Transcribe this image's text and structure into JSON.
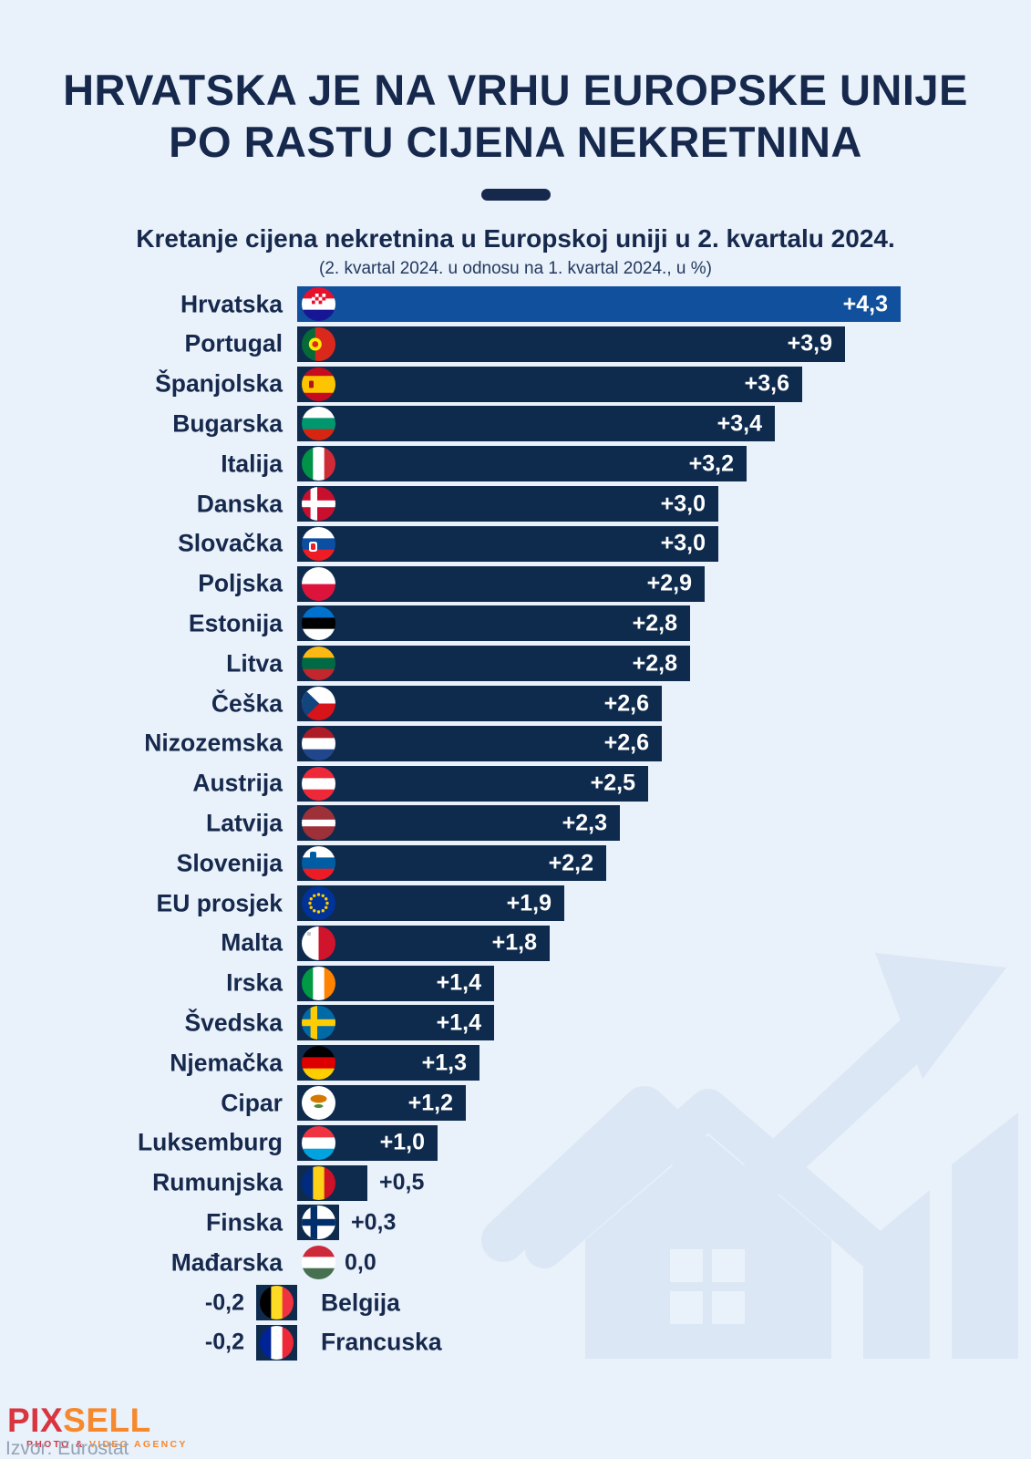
{
  "colors": {
    "bg": "#e9f1fb",
    "bar": "#0e2b4e",
    "accent_bar": "#10509c",
    "title": "#16294d",
    "note": "#23395e",
    "gray": "#93a2b5",
    "pix_red": "#d8353f",
    "sell_orange": "#f6892d",
    "watermark": "#dce7f5",
    "value_inside": "#ffffff"
  },
  "header": {
    "title_line1": "HRVATSKA JE NA VRHU EUROPSKE UNIJE",
    "title_line2": "PO RASTU CIJENA NEKRETNINA",
    "subtitle": "Kretanje cijena nekretnina u Europskoj uniji u 2. kvartalu 2024.",
    "note": "(2. kvartal 2024. u odnosu na 1. kvartal 2024., u %)"
  },
  "chart": {
    "rows": [
      {
        "id": "hrvatska",
        "label": "Hrvatska",
        "value": 4.3,
        "value_label": "+4,3",
        "accent": true,
        "flag": {
          "type": "h",
          "stripes": [
            {
              "c": "#e8112d",
              "w": 0.334
            },
            {
              "c": "#ffffff",
              "w": 0.333
            },
            {
              "c": "#171796",
              "w": 0.333
            }
          ],
          "emblems": [
            {
              "t": "checker",
              "x": 11,
              "y": 7,
              "s": 3.8,
              "c": "#e8112d"
            }
          ]
        }
      },
      {
        "id": "portugal",
        "label": "Portugal",
        "value": 3.9,
        "value_label": "+3,9",
        "flag": {
          "type": "v",
          "stripes": [
            {
              "c": "#046a38",
              "w": 0.4
            },
            {
              "c": "#da291c",
              "w": 0.6
            }
          ],
          "emblems": [
            {
              "t": "circle",
              "x": 14.8,
              "y": 18.5,
              "r": 7,
              "c": "#ffe900"
            },
            {
              "t": "circle",
              "x": 14.8,
              "y": 18.5,
              "r": 3.4,
              "c": "#da291c"
            }
          ]
        }
      },
      {
        "id": "spanjolska",
        "label": "Španjolska",
        "value": 3.6,
        "value_label": "+3,6",
        "flag": {
          "type": "h",
          "stripes": [
            {
              "c": "#c60b1e",
              "w": 0.25
            },
            {
              "c": "#ffc400",
              "w": 0.5
            },
            {
              "c": "#c60b1e",
              "w": 0.25
            }
          ],
          "emblems": [
            {
              "t": "rect",
              "x": 8,
              "y": 14.5,
              "w": 5,
              "h": 8,
              "rx": 1.5,
              "c": "#ad1519"
            }
          ]
        }
      },
      {
        "id": "bugarska",
        "label": "Bugarska",
        "value": 3.4,
        "value_label": "+3,4",
        "flag": {
          "type": "h",
          "stripes": [
            {
              "c": "#ffffff",
              "w": 0.334
            },
            {
              "c": "#00966e",
              "w": 0.333
            },
            {
              "c": "#d62612",
              "w": 0.333
            }
          ]
        }
      },
      {
        "id": "italija",
        "label": "Italija",
        "value": 3.2,
        "value_label": "+3,2",
        "flag": {
          "type": "v",
          "stripes": [
            {
              "c": "#009246",
              "w": 0.334
            },
            {
              "c": "#ffffff",
              "w": 0.333
            },
            {
              "c": "#ce2b37",
              "w": 0.333
            }
          ]
        }
      },
      {
        "id": "danska",
        "label": "Danska",
        "value": 3.0,
        "value_label": "+3,0",
        "flag": {
          "type": "nordic",
          "bg": "#c8102e",
          "cross": "#ffffff"
        }
      },
      {
        "id": "slovacka",
        "label": "Slovačka",
        "value": 3.0,
        "value_label": "+3,0",
        "flag": {
          "type": "h",
          "stripes": [
            {
              "c": "#ffffff",
              "w": 0.334
            },
            {
              "c": "#0b4ea2",
              "w": 0.333
            },
            {
              "c": "#ee1c25",
              "w": 0.333
            }
          ],
          "emblems": [
            {
              "t": "rect",
              "x": 8,
              "y": 16,
              "w": 9,
              "h": 11,
              "rx": 2.5,
              "c": "#ffffff"
            },
            {
              "t": "rect",
              "x": 10,
              "y": 18,
              "w": 5,
              "h": 7,
              "rx": 1.5,
              "c": "#ee1c25"
            }
          ]
        }
      },
      {
        "id": "poljska",
        "label": "Poljska",
        "value": 2.9,
        "value_label": "+2,9",
        "flag": {
          "type": "h",
          "stripes": [
            {
              "c": "#ffffff",
              "w": 0.5
            },
            {
              "c": "#dc143c",
              "w": 0.5
            }
          ]
        }
      },
      {
        "id": "estonija",
        "label": "Estonija",
        "value": 2.8,
        "value_label": "+2,8",
        "flag": {
          "type": "h",
          "stripes": [
            {
              "c": "#0072ce",
              "w": 0.334
            },
            {
              "c": "#000000",
              "w": 0.333
            },
            {
              "c": "#ffffff",
              "w": 0.333
            }
          ]
        }
      },
      {
        "id": "litva",
        "label": "Litva",
        "value": 2.8,
        "value_label": "+2,8",
        "flag": {
          "type": "h",
          "stripes": [
            {
              "c": "#fdb913",
              "w": 0.334
            },
            {
              "c": "#006a44",
              "w": 0.333
            },
            {
              "c": "#c1272d",
              "w": 0.333
            }
          ]
        }
      },
      {
        "id": "ceska",
        "label": "Češka",
        "value": 2.6,
        "value_label": "+2,6",
        "flag": {
          "type": "h",
          "stripes": [
            {
              "c": "#ffffff",
              "w": 0.5
            },
            {
              "c": "#d7141a",
              "w": 0.5
            }
          ],
          "emblems": [
            {
              "t": "tri",
              "c": "#11457e"
            }
          ]
        }
      },
      {
        "id": "nizozemska",
        "label": "Nizozemska",
        "value": 2.6,
        "value_label": "+2,6",
        "flag": {
          "type": "h",
          "stripes": [
            {
              "c": "#ae1c28",
              "w": 0.334
            },
            {
              "c": "#ffffff",
              "w": 0.333
            },
            {
              "c": "#21468b",
              "w": 0.333
            }
          ]
        }
      },
      {
        "id": "austrija",
        "label": "Austrija",
        "value": 2.5,
        "value_label": "+2,5",
        "flag": {
          "type": "h",
          "stripes": [
            {
              "c": "#ed2939",
              "w": 0.334
            },
            {
              "c": "#ffffff",
              "w": 0.333
            },
            {
              "c": "#ed2939",
              "w": 0.333
            }
          ]
        }
      },
      {
        "id": "latvija",
        "label": "Latvija",
        "value": 2.3,
        "value_label": "+2,3",
        "flag": {
          "type": "h",
          "stripes": [
            {
              "c": "#9e3039",
              "w": 0.4
            },
            {
              "c": "#ffffff",
              "w": 0.2
            },
            {
              "c": "#9e3039",
              "w": 0.4
            }
          ]
        }
      },
      {
        "id": "slovenija",
        "label": "Slovenija",
        "value": 2.2,
        "value_label": "+2,2",
        "flag": {
          "type": "h",
          "stripes": [
            {
              "c": "#ffffff",
              "w": 0.334
            },
            {
              "c": "#005da4",
              "w": 0.333
            },
            {
              "c": "#ed1c24",
              "w": 0.333
            }
          ],
          "emblems": [
            {
              "t": "rect",
              "x": 9,
              "y": 6,
              "w": 7,
              "h": 9,
              "rx": 2,
              "c": "#005da4"
            }
          ]
        }
      },
      {
        "id": "eu-prosjek",
        "label": "EU prosjek",
        "value": 1.9,
        "value_label": "+1,9",
        "flag": {
          "type": "eu",
          "bg": "#003399",
          "star": "#ffcc00"
        }
      },
      {
        "id": "malta",
        "label": "Malta",
        "value": 1.8,
        "value_label": "+1,8",
        "flag": {
          "type": "v",
          "stripes": [
            {
              "c": "#ffffff",
              "w": 0.5
            },
            {
              "c": "#cf142b",
              "w": 0.5
            }
          ],
          "emblems": [
            {
              "t": "rect",
              "x": 6,
              "y": 6,
              "w": 4,
              "h": 4,
              "rx": 0.5,
              "c": "#c8c8c8"
            }
          ]
        }
      },
      {
        "id": "irska",
        "label": "Irska",
        "value": 1.4,
        "value_label": "+1,4",
        "flag": {
          "type": "v",
          "stripes": [
            {
              "c": "#009a44",
              "w": 0.334
            },
            {
              "c": "#ffffff",
              "w": 0.333
            },
            {
              "c": "#ff8200",
              "w": 0.333
            }
          ]
        }
      },
      {
        "id": "svedska",
        "label": "Švedska",
        "value": 1.4,
        "value_label": "+1,4",
        "flag": {
          "type": "nordic",
          "bg": "#006aa7",
          "cross": "#fecc02"
        }
      },
      {
        "id": "njemacka",
        "label": "Njemačka",
        "value": 1.3,
        "value_label": "+1,3",
        "flag": {
          "type": "h",
          "stripes": [
            {
              "c": "#000000",
              "w": 0.334
            },
            {
              "c": "#dd0000",
              "w": 0.333
            },
            {
              "c": "#ffce00",
              "w": 0.333
            }
          ]
        }
      },
      {
        "id": "cipar",
        "label": "Cipar",
        "value": 1.2,
        "value_label": "+1,2",
        "flag": {
          "type": "solid",
          "bg": "#ffffff",
          "emblems": [
            {
              "t": "ellipse",
              "x": 18.5,
              "y": 14,
              "rx": 9,
              "ry": 4.5,
              "c": "#d57800"
            },
            {
              "t": "ellipse",
              "x": 18.5,
              "y": 22,
              "rx": 5,
              "ry": 2,
              "c": "#4e8b31"
            }
          ]
        }
      },
      {
        "id": "luksemburg",
        "label": "Luksemburg",
        "value": 1.0,
        "value_label": "+1,0",
        "flag": {
          "type": "h",
          "stripes": [
            {
              "c": "#ef3340",
              "w": 0.334
            },
            {
              "c": "#ffffff",
              "w": 0.333
            },
            {
              "c": "#00a3e0",
              "w": 0.333
            }
          ]
        }
      },
      {
        "id": "rumunjska",
        "label": "Rumunjska",
        "value": 0.5,
        "value_label": "+0,5",
        "flag": {
          "type": "v",
          "stripes": [
            {
              "c": "#002b7f",
              "w": 0.334
            },
            {
              "c": "#fcd116",
              "w": 0.333
            },
            {
              "c": "#ce1126",
              "w": 0.333
            }
          ]
        }
      },
      {
        "id": "finska",
        "label": "Finska",
        "value": 0.3,
        "value_label": "+0,3",
        "flag": {
          "type": "nordic",
          "bg": "#ffffff",
          "cross": "#002f6c"
        }
      },
      {
        "id": "madarska",
        "label": "Mađarska",
        "value": 0.0,
        "value_label": "0,0",
        "flag": {
          "type": "h",
          "stripes": [
            {
              "c": "#ce2939",
              "w": 0.334
            },
            {
              "c": "#ffffff",
              "w": 0.333
            },
            {
              "c": "#477050",
              "w": 0.333
            }
          ]
        }
      },
      {
        "id": "belgija",
        "label": "Belgija",
        "value": -0.2,
        "value_label": "-0,2",
        "flag": {
          "type": "v",
          "stripes": [
            {
              "c": "#000000",
              "w": 0.334
            },
            {
              "c": "#fdda24",
              "w": 0.333
            },
            {
              "c": "#ef3340",
              "w": 0.333
            }
          ]
        }
      },
      {
        "id": "francuska",
        "label": "Francuska",
        "value": -0.2,
        "value_label": "-0,2",
        "flag": {
          "type": "v",
          "stripes": [
            {
              "c": "#002395",
              "w": 0.334
            },
            {
              "c": "#ffffff",
              "w": 0.333
            },
            {
              "c": "#ed2939",
              "w": 0.333
            }
          ]
        }
      }
    ]
  },
  "chart_data": {
    "type": "bar",
    "orientation": "horizontal",
    "title": "Kretanje cijena nekretnina u Europskoj uniji u 2. kvartalu 2024.",
    "subtitle": "(2. kvartal 2024. u odnosu na 1. kvartal 2024., u %)",
    "unit": "%",
    "categories": [
      "Hrvatska",
      "Portugal",
      "Španjolska",
      "Bugarska",
      "Italija",
      "Danska",
      "Slovačka",
      "Poljska",
      "Estonija",
      "Litva",
      "Češka",
      "Nizozemska",
      "Austrija",
      "Latvija",
      "Slovenija",
      "EU prosjek",
      "Malta",
      "Irska",
      "Švedska",
      "Njemačka",
      "Cipar",
      "Luksemburg",
      "Rumunjska",
      "Finska",
      "Mađarska",
      "Belgija",
      "Francuska"
    ],
    "values": [
      4.3,
      3.9,
      3.6,
      3.4,
      3.2,
      3.0,
      3.0,
      2.9,
      2.8,
      2.8,
      2.6,
      2.6,
      2.5,
      2.3,
      2.2,
      1.9,
      1.8,
      1.4,
      1.4,
      1.3,
      1.2,
      1.0,
      0.5,
      0.3,
      0.0,
      -0.2,
      -0.2
    ],
    "data_labels": [
      "+4,3",
      "+3,9",
      "+3,6",
      "+3,4",
      "+3,2",
      "+3,0",
      "+3,0",
      "+2,9",
      "+2,8",
      "+2,8",
      "+2,6",
      "+2,6",
      "+2,5",
      "+2,3",
      "+2,2",
      "+1,9",
      "+1,8",
      "+1,4",
      "+1,4",
      "+1,3",
      "+1,2",
      "+1,0",
      "+0,5",
      "+0,3",
      "0,0",
      "-0,2",
      "-0,2"
    ],
    "highlighted_category": "Hrvatska",
    "xlim": [
      -0.3,
      4.5
    ],
    "grid": false,
    "legend": false
  },
  "footer": {
    "logo_pix": "PIX",
    "logo_sell": "SELL",
    "tagline_left": "PHOTO &",
    "tagline_right": "VIDEO AGENCY",
    "source": "Izvor: Eurostat"
  }
}
